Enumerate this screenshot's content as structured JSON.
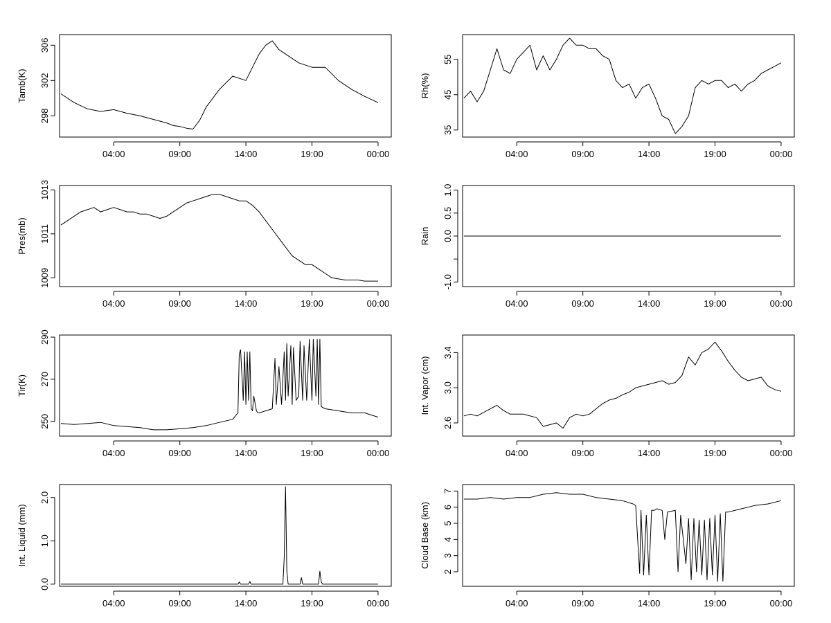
{
  "x_tick_labels": [
    "04:00",
    "09:00",
    "14:00",
    "19:00",
    "00:00"
  ],
  "chart_data": [
    {
      "type": "line",
      "ylabel": "Tamb(K)",
      "ylim": [
        295.6,
        307.2
      ],
      "yticks": [
        298,
        302,
        306
      ],
      "ytick_labels": [
        "298",
        "302",
        "306"
      ],
      "xlim": [
        -0.1,
        25.0
      ],
      "xticks": [
        4,
        9,
        14,
        19,
        24
      ],
      "grid": false,
      "x": [
        0,
        1,
        2,
        3,
        4,
        5,
        6,
        7,
        8,
        8.5,
        9,
        9.5,
        10,
        10.5,
        11,
        12,
        13,
        14,
        14.5,
        15,
        15.5,
        16,
        16.5,
        17,
        17.5,
        18,
        19,
        20,
        21,
        22,
        23,
        24
      ],
      "y": [
        300.5,
        299.5,
        298.8,
        298.5,
        298.7,
        298.3,
        298.0,
        297.6,
        297.2,
        296.9,
        296.8,
        296.6,
        296.5,
        297.5,
        299.0,
        301.0,
        302.5,
        302.0,
        303.5,
        305.0,
        306.0,
        306.5,
        305.5,
        305.0,
        304.5,
        304.0,
        303.5,
        303.5,
        302.0,
        301.0,
        300.2,
        299.5
      ]
    },
    {
      "type": "line",
      "ylabel": "Rh(%)",
      "ylim": [
        33,
        62
      ],
      "yticks": [
        35,
        45,
        55
      ],
      "ytick_labels": [
        "35",
        "45",
        "55"
      ],
      "xlim": [
        -0.1,
        25.0
      ],
      "xticks": [
        4,
        9,
        14,
        19,
        24
      ],
      "grid": false,
      "x": [
        0,
        0.5,
        1,
        1.5,
        2,
        2.5,
        3,
        3.5,
        4,
        4.5,
        5,
        5.5,
        6,
        6.5,
        7,
        7.5,
        8,
        8.5,
        9,
        9.5,
        10,
        10.5,
        11,
        11.5,
        12,
        12.5,
        13,
        13.5,
        14,
        14.5,
        15,
        15.5,
        16,
        16.5,
        17,
        17.5,
        18,
        18.5,
        19,
        19.5,
        20,
        20.5,
        21,
        21.5,
        22,
        22.5,
        23,
        23.5,
        24
      ],
      "y": [
        44,
        46,
        43,
        46,
        52,
        58,
        52,
        51,
        55,
        57,
        59,
        52,
        56,
        52,
        55,
        59,
        61,
        59,
        59,
        58,
        58,
        56,
        55,
        49,
        47,
        48,
        44,
        47,
        48,
        44,
        39,
        38,
        34,
        36,
        39,
        47,
        49,
        48,
        49,
        49,
        47,
        48,
        46,
        48,
        49,
        51,
        52,
        53,
        54
      ]
    },
    {
      "type": "line",
      "ylabel": "Pres(mb)",
      "ylim": [
        1008.6,
        1013.2
      ],
      "yticks": [
        1009,
        1011,
        1013
      ],
      "ytick_labels": [
        "1009",
        "1011",
        "1013"
      ],
      "xlim": [
        -0.1,
        25.0
      ],
      "xticks": [
        4,
        9,
        14,
        19,
        24
      ],
      "grid": false,
      "x": [
        0,
        0.5,
        1,
        1.5,
        2,
        2.5,
        3,
        3.5,
        4,
        4.5,
        5,
        5.5,
        6,
        6.5,
        7,
        7.5,
        8,
        8.5,
        9,
        9.5,
        10,
        10.5,
        11,
        11.5,
        12,
        12.5,
        13,
        13.5,
        14,
        14.5,
        15,
        15.5,
        16,
        16.5,
        17,
        17.5,
        18,
        18.5,
        19,
        19.5,
        20,
        20.5,
        21,
        21.5,
        22,
        22.5,
        23,
        23.5,
        24
      ],
      "y": [
        1011.4,
        1011.6,
        1011.8,
        1012.0,
        1012.1,
        1012.2,
        1012.0,
        1012.1,
        1012.2,
        1012.1,
        1012.0,
        1012.0,
        1011.9,
        1011.9,
        1011.8,
        1011.7,
        1011.8,
        1012.0,
        1012.2,
        1012.4,
        1012.5,
        1012.6,
        1012.7,
        1012.8,
        1012.8,
        1012.7,
        1012.6,
        1012.5,
        1012.5,
        1012.3,
        1012.0,
        1011.6,
        1011.2,
        1010.8,
        1010.4,
        1010.0,
        1009.8,
        1009.6,
        1009.6,
        1009.4,
        1009.2,
        1009.0,
        1008.95,
        1008.9,
        1008.9,
        1008.9,
        1008.85,
        1008.85,
        1008.85
      ]
    },
    {
      "type": "line",
      "ylabel": "Rain",
      "ylim": [
        -1.1,
        1.1
      ],
      "yticks": [
        -1.0,
        -0.5,
        0.0,
        0.5,
        1.0
      ],
      "ytick_labels": [
        "-1.0",
        "",
        "0.0",
        "0.5",
        "1.0"
      ],
      "xlim": [
        -0.1,
        25.0
      ],
      "xticks": [
        4,
        9,
        14,
        19,
        24
      ],
      "grid": false,
      "x": [
        0,
        24
      ],
      "y": [
        0,
        0
      ]
    },
    {
      "type": "line",
      "ylabel": "Tir(K)",
      "ylim": [
        243,
        291
      ],
      "yticks": [
        250,
        270,
        290
      ],
      "ytick_labels": [
        "250",
        "270",
        "290"
      ],
      "xlim": [
        -0.1,
        25.0
      ],
      "xticks": [
        4,
        9,
        14,
        19,
        24
      ],
      "grid": false,
      "x": [
        0,
        1,
        2,
        3,
        4,
        5,
        6,
        7,
        8,
        9,
        10,
        11,
        12,
        13,
        13.4,
        13.5,
        13.6,
        13.8,
        13.9,
        14.0,
        14.1,
        14.2,
        14.3,
        14.4,
        14.5,
        14.6,
        14.8,
        14.9,
        15.0,
        15.5,
        16.0,
        16.2,
        16.3,
        16.5,
        16.7,
        16.9,
        17.0,
        17.1,
        17.2,
        17.4,
        17.5,
        17.6,
        17.8,
        18.0,
        18.1,
        18.3,
        18.4,
        18.6,
        18.8,
        19.0,
        19.1,
        19.3,
        19.4,
        19.5,
        19.6,
        19.7,
        20.0,
        21.0,
        22.0,
        23.0,
        24.0
      ],
      "y": [
        249,
        248.5,
        249,
        249.5,
        248,
        247.5,
        247,
        246,
        246,
        246.5,
        247,
        248,
        249.5,
        251,
        254,
        282,
        284,
        260,
        283,
        258,
        283,
        260,
        283,
        256,
        255,
        262,
        255,
        254,
        254,
        255,
        256,
        280,
        258,
        276,
        258,
        283,
        260,
        287,
        262,
        286,
        258,
        285,
        260,
        262,
        288,
        260,
        286,
        260,
        289,
        260,
        289,
        262,
        289,
        258,
        289,
        257,
        256,
        255,
        254,
        254,
        252
      ]
    },
    {
      "type": "line",
      "ylabel": "Int. Vapor (cm)",
      "ylim": [
        2.45,
        3.6
      ],
      "yticks": [
        2.6,
        3.0,
        3.4
      ],
      "ytick_labels": [
        "2.6",
        "3.0",
        "3.4"
      ],
      "xlim": [
        -0.1,
        25.0
      ],
      "xticks": [
        4,
        9,
        14,
        19,
        24
      ],
      "grid": false,
      "x": [
        0,
        0.5,
        1,
        1.5,
        2,
        2.5,
        3,
        3.5,
        4,
        4.5,
        5,
        5.5,
        6,
        6.5,
        7,
        7.5,
        8,
        8.5,
        9,
        9.5,
        10,
        10.5,
        11,
        11.5,
        12,
        12.5,
        13,
        13.5,
        14,
        14.5,
        15,
        15.5,
        16,
        16.5,
        17,
        17.5,
        18,
        18.5,
        19,
        19.5,
        20,
        20.5,
        21,
        21.5,
        22,
        22.5,
        23,
        23.5,
        24
      ],
      "y": [
        2.68,
        2.7,
        2.68,
        2.72,
        2.76,
        2.8,
        2.74,
        2.7,
        2.7,
        2.7,
        2.68,
        2.66,
        2.56,
        2.58,
        2.6,
        2.54,
        2.66,
        2.7,
        2.68,
        2.7,
        2.76,
        2.82,
        2.86,
        2.88,
        2.92,
        2.95,
        3.0,
        3.02,
        3.04,
        3.06,
        3.08,
        3.04,
        3.06,
        3.14,
        3.35,
        3.26,
        3.4,
        3.44,
        3.52,
        3.42,
        3.3,
        3.2,
        3.12,
        3.08,
        3.1,
        3.12,
        3.02,
        2.98,
        2.96
      ]
    },
    {
      "type": "line",
      "ylabel": "Int. Liquid (mm)",
      "ylim": [
        -0.05,
        2.3
      ],
      "yticks": [
        0.0,
        1.0,
        2.0
      ],
      "ytick_labels": [
        "0.0",
        "1.0",
        "2.0"
      ],
      "xlim": [
        -0.1,
        25.0
      ],
      "xticks": [
        4,
        9,
        14,
        19,
        24
      ],
      "grid": false,
      "x": [
        0,
        13.4,
        13.5,
        13.6,
        14.2,
        14.3,
        14.4,
        16.8,
        16.9,
        17.0,
        17.1,
        17.2,
        17.3,
        18.1,
        18.2,
        18.3,
        19.5,
        19.6,
        19.7,
        19.8,
        24
      ],
      "y": [
        0,
        0,
        0.05,
        0,
        0,
        0.06,
        0,
        0,
        0.6,
        2.25,
        0.3,
        0,
        0,
        0,
        0.15,
        0,
        0,
        0.3,
        0.05,
        0,
        0
      ]
    },
    {
      "type": "line",
      "ylabel": "Cloud Base (km)",
      "ylim": [
        1.1,
        7.4
      ],
      "yticks": [
        2,
        3,
        4,
        5,
        6,
        7
      ],
      "ytick_labels": [
        "2",
        "3",
        "4",
        "5",
        "6",
        "7"
      ],
      "xlim": [
        -0.1,
        25.0
      ],
      "xticks": [
        4,
        9,
        14,
        19,
        24
      ],
      "grid": false,
      "x": [
        0,
        1,
        2,
        3,
        4,
        5,
        6,
        7,
        8,
        9,
        10,
        11,
        12,
        12.8,
        13.0,
        13.3,
        13.4,
        13.6,
        13.8,
        14.0,
        14.2,
        14.4,
        14.6,
        15.0,
        15.2,
        15.4,
        16.0,
        16.2,
        16.4,
        16.8,
        17.0,
        17.2,
        17.4,
        17.6,
        17.8,
        18.0,
        18.2,
        18.4,
        18.6,
        18.8,
        19.0,
        19.2,
        19.4,
        19.6,
        19.8,
        20.0,
        21.0,
        22.0,
        23.0,
        24.0
      ],
      "y": [
        6.5,
        6.5,
        6.6,
        6.5,
        6.6,
        6.6,
        6.8,
        6.9,
        6.8,
        6.8,
        6.6,
        6.5,
        6.4,
        6.2,
        6.1,
        1.9,
        5.8,
        1.8,
        5.5,
        1.8,
        5.8,
        5.8,
        5.9,
        5.8,
        4.0,
        5.7,
        5.8,
        2.0,
        5.5,
        2.5,
        5.3,
        1.5,
        5.3,
        2.0,
        5.2,
        1.8,
        5.2,
        1.5,
        5.3,
        1.8,
        5.5,
        1.4,
        5.6,
        1.4,
        5.7,
        5.7,
        5.9,
        6.1,
        6.2,
        6.4
      ]
    }
  ]
}
